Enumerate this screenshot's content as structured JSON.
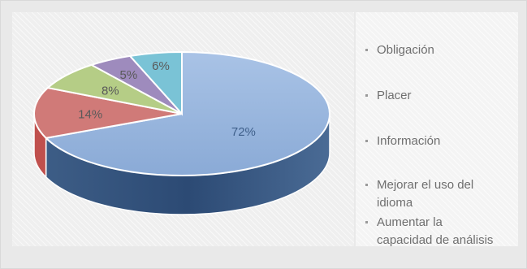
{
  "chart_data": {
    "type": "pie",
    "categories": [
      "Obligación",
      "Placer",
      "Información",
      "Mejorar el uso del idioma",
      "Aumentar la capacidad de análisis"
    ],
    "values": [
      72,
      14,
      8,
      5,
      6
    ],
    "data_labels": [
      "72%",
      "14%",
      "8%",
      "5%",
      "6%"
    ],
    "colors": [
      "#4f81bd",
      "#c0504d",
      "#9bbb59",
      "#8064a2",
      "#4bacc6"
    ],
    "legend": {
      "placement": "right",
      "entries": [
        {
          "line1": "Obligación",
          "line2": ""
        },
        {
          "line1": "Placer",
          "line2": ""
        },
        {
          "line1": "Información",
          "line2": ""
        },
        {
          "line1": "Mejorar el uso del",
          "line2": "idioma"
        },
        {
          "line1": "Aumentar la",
          "line2": "capacidad de análisis"
        }
      ]
    },
    "style": "3d-pie"
  }
}
